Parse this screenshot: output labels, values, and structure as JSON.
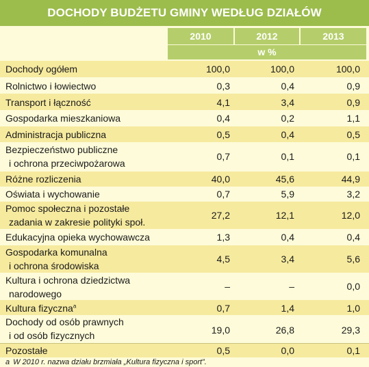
{
  "title": "DOCHODY BUDŻETU GMINY WEDŁUG DZIAŁÓW",
  "years": [
    "2010",
    "2012",
    "2013"
  ],
  "unit": "w %",
  "rows": [
    {
      "label1": "Dochody ogółem",
      "label2": "",
      "v2010": "100,0",
      "v2012": "100,0",
      "v2013": "100,0"
    },
    {
      "label1": "Rolnictwo i łowiectwo",
      "label2": "",
      "v2010": "0,3",
      "v2012": "0,4",
      "v2013": "0,9"
    },
    {
      "label1": "Transport i łączność",
      "label2": "",
      "v2010": "4,1",
      "v2012": "3,4",
      "v2013": "0,9"
    },
    {
      "label1": "Gospodarka mieszkaniowa",
      "label2": "",
      "v2010": "0,4",
      "v2012": "0,2",
      "v2013": "1,1"
    },
    {
      "label1": "Administracja publiczna",
      "label2": "",
      "v2010": "0,5",
      "v2012": "0,4",
      "v2013": "0,5"
    },
    {
      "label1": "Bezpieczeństwo publiczne",
      "label2": "i ochrona przeciwpożarowa",
      "v2010": "0,7",
      "v2012": "0,1",
      "v2013": "0,1"
    },
    {
      "label1": "Różne rozliczenia",
      "label2": "",
      "v2010": "40,0",
      "v2012": "45,6",
      "v2013": "44,9"
    },
    {
      "label1": "Oświata i wychowanie",
      "label2": "",
      "v2010": "0,7",
      "v2012": "5,9",
      "v2013": "3,2"
    },
    {
      "label1": "Pomoc społeczna i pozostałe",
      "label2": "zadania w zakresie polityki społ.",
      "v2010": "27,2",
      "v2012": "12,1",
      "v2013": "12,0"
    },
    {
      "label1": "Edukacyjna opieka wychowawcza",
      "label2": "",
      "v2010": "1,3",
      "v2012": "0,4",
      "v2013": "0,4"
    },
    {
      "label1": "Gospodarka komunalna",
      "label2": "i ochrona środowiska",
      "v2010": "4,5",
      "v2012": "3,4",
      "v2013": "5,6"
    },
    {
      "label1": "Kultura i ochrona dziedzictwa",
      "label2": "narodowego",
      "v2010": "–",
      "v2012": "–",
      "v2013": "0,0"
    },
    {
      "label1": "Kultura fizyczna",
      "label2": "",
      "sup": "a",
      "v2010": "0,7",
      "v2012": "1,4",
      "v2013": "1,0"
    },
    {
      "label1": "Dochody od osób prawnych",
      "label2": "i od osób fizycznych",
      "v2010": "19,0",
      "v2012": "26,8",
      "v2013": "29,3"
    },
    {
      "label1": "Pozostałe",
      "label2": "",
      "v2010": "0,5",
      "v2012": "0,0",
      "v2013": "0,1"
    }
  ],
  "footnote": {
    "marker": "a",
    "text": "W 2010 r. nazwa działu brzmiała „Kultura fizyczna i sport”."
  }
}
